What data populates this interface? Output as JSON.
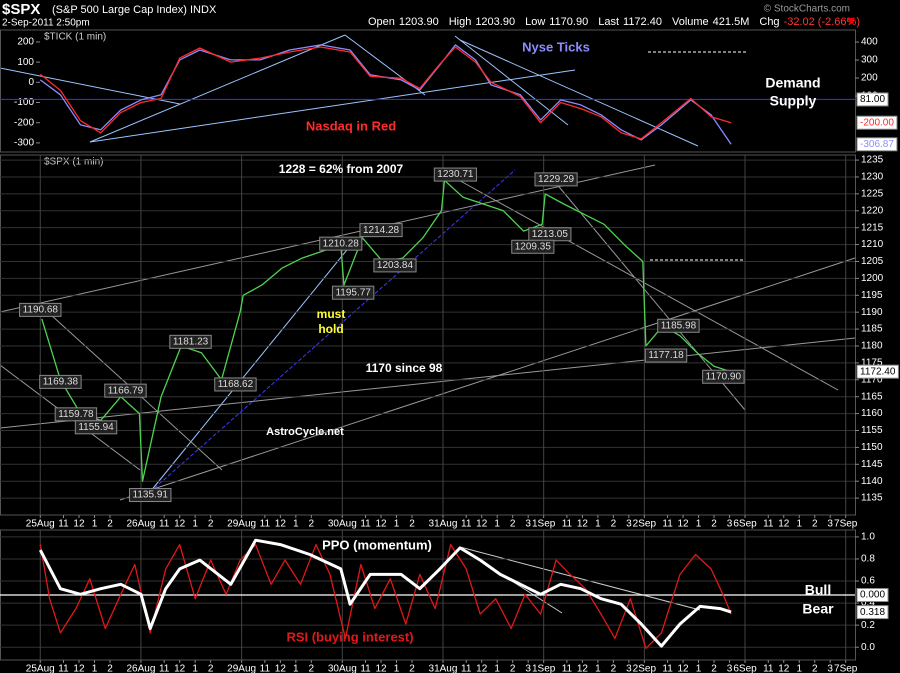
{
  "header": {
    "symbol": "$SPX",
    "name": "(S&P 500 Large Cap Index) INDX",
    "date": "2-Sep-2011 2:50pm",
    "quote": [
      {
        "label": "Open",
        "value": "1203.90"
      },
      {
        "label": "High",
        "value": "1203.90"
      },
      {
        "label": "Low",
        "value": "1170.90"
      },
      {
        "label": "Last",
        "value": "1172.40"
      },
      {
        "label": "Volume",
        "value": "421.5M"
      },
      {
        "label": "Chg",
        "value": "-32.02 (-2.66%)"
      }
    ],
    "copyright": "© StockCharts.com"
  },
  "chart_data": [
    {
      "type": "line",
      "title": "$TICK (1 min)",
      "y_axis_side": "left",
      "grid": false,
      "xlim": [
        -2.6,
        52.6
      ],
      "x": [
        0,
        1.3,
        2.6,
        3.9,
        5.2,
        6.5,
        7.8,
        9.0,
        10.3,
        12.3,
        14.2,
        16.1,
        18.1,
        20.0,
        21.3,
        23.3,
        24.5,
        25.8,
        26.8,
        28.1,
        29.1,
        31.0,
        32.3,
        33.6,
        34.9,
        36.2,
        37.5,
        38.8,
        40.1,
        42.0,
        43.3,
        44.6
      ],
      "series": [
        {
          "name": "Nyse Ticks",
          "color": "#8c8cff",
          "values": [
            12,
            -62,
            -211,
            -235,
            -137,
            -87,
            -62,
            111,
            160,
            111,
            111,
            160,
            185,
            160,
            37,
            12,
            -38,
            86,
            185,
            111,
            -13,
            -62,
            -186,
            -87,
            -112,
            -161,
            -235,
            -285,
            -211,
            -87,
            -161,
            -306.87
          ],
          "last_value": {
            "value": -306.87,
            "label": "-306.87"
          }
        },
        {
          "name": "Nasdaq in Red",
          "color": "#ff2a2a",
          "values": [
            40,
            -40,
            -190,
            -250,
            -150,
            -100,
            -80,
            120,
            170,
            100,
            120,
            150,
            175,
            150,
            30,
            20,
            -30,
            90,
            175,
            100,
            0,
            -70,
            -200,
            -100,
            -130,
            -170,
            -250,
            -280,
            -200,
            -80,
            -170,
            -200
          ],
          "last_value": {
            "value": -200,
            "label": "-200.00"
          }
        }
      ],
      "ylim": [
        -345,
        259
      ],
      "yticks": [
        -300,
        -200,
        -100,
        0,
        100,
        200
      ],
      "y2lim": [
        -211,
        467
      ],
      "y2ticks": [
        100,
        200,
        300,
        400
      ],
      "reference_line": {
        "value": 81,
        "label": "81.00",
        "axis": "y2",
        "color": "#2a2aff"
      },
      "notes": [
        "Demand",
        "Supply"
      ]
    },
    {
      "type": "line",
      "title": "$SPX (1 min)",
      "y_axis_side": "right",
      "grid": true,
      "color": "#4fd34f",
      "xlim": [
        -2.6,
        52.6
      ],
      "x": [
        0.1,
        1.3,
        2.6,
        3.9,
        5.2,
        6.4,
        6.6,
        7.8,
        9.1,
        10.4,
        11.7,
        12.9,
        13.1,
        14.3,
        15.6,
        16.9,
        18.2,
        19.4,
        19.6,
        20.8,
        22.1,
        23.4,
        24.7,
        25.9,
        26.1,
        27.3,
        28.6,
        29.9,
        31.2,
        32.4,
        32.6,
        33.8,
        35.1,
        36.4,
        37.7,
        38.9,
        39.1,
        40.2,
        41.3,
        42.4,
        43.5,
        44.6
      ],
      "values": [
        1188,
        1170,
        1160,
        1158,
        1165,
        1160,
        1140,
        1165,
        1180,
        1178,
        1170,
        1190,
        1195,
        1198,
        1203,
        1206,
        1208,
        1210,
        1198,
        1212,
        1205,
        1206,
        1212,
        1220,
        1229,
        1224,
        1222,
        1220,
        1214,
        1216,
        1225,
        1222,
        1219,
        1216,
        1210,
        1205,
        1180,
        1186,
        1183,
        1178,
        1174,
        1172.4
      ],
      "last_value": {
        "value": 1172.4,
        "label": "1172.40"
      },
      "ylim": [
        1130,
        1236.5
      ],
      "yticks": [
        1135,
        1140,
        1145,
        1150,
        1155,
        1160,
        1165,
        1170,
        1175,
        1180,
        1185,
        1190,
        1195,
        1200,
        1205,
        1210,
        1215,
        1220,
        1225,
        1230,
        1235
      ],
      "xticks": [
        {
          "value": 0,
          "label": "25Aug"
        },
        {
          "value": 1.5,
          "label": "11"
        },
        {
          "value": 2.5,
          "label": "12"
        },
        {
          "value": 3.5,
          "label": "1"
        },
        {
          "value": 4.5,
          "label": "2"
        },
        {
          "value": 6.5,
          "label": "26Aug"
        },
        {
          "value": 8,
          "label": "11"
        },
        {
          "value": 9,
          "label": "12"
        },
        {
          "value": 10,
          "label": "1"
        },
        {
          "value": 11,
          "label": "2"
        },
        {
          "value": 13,
          "label": "29Aug"
        },
        {
          "value": 14.5,
          "label": "11"
        },
        {
          "value": 15.5,
          "label": "12"
        },
        {
          "value": 16.5,
          "label": "1"
        },
        {
          "value": 17.5,
          "label": "2"
        },
        {
          "value": 19.5,
          "label": "30Aug"
        },
        {
          "value": 21,
          "label": "11"
        },
        {
          "value": 22,
          "label": "12"
        },
        {
          "value": 23,
          "label": "1"
        },
        {
          "value": 24,
          "label": "2"
        },
        {
          "value": 26,
          "label": "31Aug"
        },
        {
          "value": 27.5,
          "label": "11"
        },
        {
          "value": 28.5,
          "label": "12"
        },
        {
          "value": 29.5,
          "label": "1"
        },
        {
          "value": 30.5,
          "label": "2"
        },
        {
          "value": 31.5,
          "label": "3"
        },
        {
          "value": 32.5,
          "label": "1Sep"
        },
        {
          "value": 34,
          "label": "11"
        },
        {
          "value": 35,
          "label": "12"
        },
        {
          "value": 36,
          "label": "1"
        },
        {
          "value": 37,
          "label": "2"
        },
        {
          "value": 38,
          "label": "3"
        },
        {
          "value": 39,
          "label": "2Sep"
        },
        {
          "value": 40.5,
          "label": "11"
        },
        {
          "value": 41.5,
          "label": "12"
        },
        {
          "value": 42.5,
          "label": "1"
        },
        {
          "value": 43.5,
          "label": "2"
        },
        {
          "value": 44.5,
          "label": "3"
        },
        {
          "value": 45.5,
          "label": "6Sep"
        },
        {
          "value": 47,
          "label": "11"
        },
        {
          "value": 48,
          "label": "12"
        },
        {
          "value": 49,
          "label": "1"
        },
        {
          "value": 50,
          "label": "2"
        },
        {
          "value": 51,
          "label": "3"
        },
        {
          "value": 52,
          "label": "7Sep"
        }
      ],
      "annotations": [
        {
          "x": 0.0,
          "value": 1190.68,
          "label": "1190.68"
        },
        {
          "x": 1.3,
          "value": 1169.38,
          "label": "1169.38"
        },
        {
          "x": 2.3,
          "value": 1159.78,
          "label": "1159.78"
        },
        {
          "x": 3.6,
          "value": 1155.94,
          "label": "1155.94"
        },
        {
          "x": 5.5,
          "value": 1166.79,
          "label": "1166.79"
        },
        {
          "x": 7.1,
          "value": 1135.91,
          "label": "1135.91"
        },
        {
          "x": 9.7,
          "value": 1181.23,
          "label": "1181.23"
        },
        {
          "x": 12.6,
          "value": 1168.62,
          "label": "1168.62"
        },
        {
          "x": 19.4,
          "value": 1210.28,
          "label": "1210.28"
        },
        {
          "x": 20.2,
          "value": 1195.77,
          "label": "1195.77"
        },
        {
          "x": 22.0,
          "value": 1214.28,
          "label": "1214.28"
        },
        {
          "x": 22.9,
          "value": 1203.84,
          "label": "1203.84"
        },
        {
          "x": 26.8,
          "value": 1230.71,
          "label": "1230.71"
        },
        {
          "x": 32.9,
          "value": 1213.05,
          "label": "1213.05"
        },
        {
          "x": 31.8,
          "value": 1209.35,
          "label": "1209.35"
        },
        {
          "x": 33.3,
          "value": 1229.29,
          "label": "1229.29"
        },
        {
          "x": 41.2,
          "value": 1185.98,
          "label": "1185.98"
        },
        {
          "x": 40.4,
          "value": 1177.18,
          "label": "1177.18"
        },
        {
          "x": 44.1,
          "value": 1170.9,
          "label": "1170.90"
        }
      ],
      "notes": [
        "1228 = 62% from 2007",
        "must",
        "hold",
        "1170 since 98",
        "AstroCycle.net"
      ]
    },
    {
      "type": "line",
      "y_axis_side": "right",
      "grid": true,
      "xlim": [
        -2.6,
        52.6
      ],
      "series": [
        {
          "name": "RSI (buying interest)",
          "color": "#e01818",
          "x": [
            0,
            0.6,
            1.3,
            2.3,
            3.2,
            4.2,
            5.2,
            6.1,
            7.1,
            8.1,
            9.0,
            10.0,
            11.0,
            12.0,
            12.9,
            13.9,
            14.9,
            15.8,
            16.8,
            17.8,
            18.7,
            19.7,
            20.7,
            21.6,
            22.6,
            23.6,
            24.5,
            25.5,
            26.5,
            27.5,
            28.4,
            29.4,
            30.4,
            31.3,
            32.3,
            33.3,
            34.2,
            35.2,
            36.2,
            37.1,
            38.1,
            39.1,
            40.1,
            41.3,
            42.3,
            43.3,
            44.2,
            44.6
          ],
          "values": [
            0.93,
            0.44,
            0.13,
            0.35,
            0.62,
            0.17,
            0.48,
            0.75,
            0.13,
            0.71,
            0.93,
            0.44,
            0.79,
            0.48,
            0.79,
            0.93,
            0.57,
            0.79,
            0.57,
            0.93,
            0.66,
            0.08,
            0.75,
            0.35,
            0.62,
            0.21,
            0.66,
            0.35,
            0.93,
            0.71,
            0.3,
            0.44,
            0.17,
            0.48,
            0.3,
            0.79,
            0.66,
            0.53,
            0.3,
            0.08,
            0.44,
            -0.01,
            0.13,
            0.66,
            0.84,
            0.71,
            0.44,
            0.3
          ]
        },
        {
          "name": "PPO (momentum)",
          "color": "#ffffff",
          "x": [
            0,
            1.3,
            2.6,
            3.9,
            5.2,
            6.5,
            7.1,
            8.1,
            9.0,
            10.3,
            12.3,
            13.9,
            15.5,
            17.4,
            19.4,
            20.0,
            21.3,
            23.3,
            24.5,
            25.8,
            27.1,
            28.4,
            29.7,
            31.0,
            32.3,
            33.6,
            34.9,
            36.2,
            37.5,
            38.8,
            40.1,
            41.3,
            42.6,
            43.9,
            44.6
          ],
          "values": [
            0.88,
            0.53,
            0.48,
            0.53,
            0.57,
            0.48,
            0.17,
            0.53,
            0.71,
            0.79,
            0.57,
            0.97,
            0.93,
            0.84,
            0.71,
            0.39,
            0.66,
            0.66,
            0.53,
            0.71,
            0.9,
            0.79,
            0.66,
            0.57,
            0.48,
            0.57,
            0.53,
            0.44,
            0.39,
            0.21,
            0.01,
            0.21,
            0.37,
            0.35,
            0.318
          ],
          "last_value": {
            "value": 0.318,
            "label": "0.318"
          }
        }
      ],
      "ylim": [
        -0.116,
        1.0625
      ],
      "yticks": [
        {
          "value": 0,
          "label": "0.0"
        },
        0.2,
        0.4,
        0.6,
        0.8,
        {
          "value": 1,
          "label": "1.0"
        }
      ],
      "y2lim": [
        -1.1,
        1.1
      ],
      "reference_line": {
        "value": 0,
        "label": "0.000",
        "axis": "y2",
        "color": "#ffffff"
      },
      "xticks": [
        {
          "value": 0,
          "label": "25Aug"
        },
        {
          "value": 1.5,
          "label": "11"
        },
        {
          "value": 2.5,
          "label": "12"
        },
        {
          "value": 3.5,
          "label": "1"
        },
        {
          "value": 4.5,
          "label": "2"
        },
        {
          "value": 6.5,
          "label": "26Aug"
        },
        {
          "value": 8,
          "label": "11"
        },
        {
          "value": 9,
          "label": "12"
        },
        {
          "value": 10,
          "label": "1"
        },
        {
          "value": 11,
          "label": "2"
        },
        {
          "value": 13,
          "label": "29Aug"
        },
        {
          "value": 14.5,
          "label": "11"
        },
        {
          "value": 15.5,
          "label": "12"
        },
        {
          "value": 16.5,
          "label": "1"
        },
        {
          "value": 17.5,
          "label": "2"
        },
        {
          "value": 19.5,
          "label": "30Aug"
        },
        {
          "value": 21,
          "label": "11"
        },
        {
          "value": 22,
          "label": "12"
        },
        {
          "value": 23,
          "label": "1"
        },
        {
          "value": 24,
          "label": "2"
        },
        {
          "value": 26,
          "label": "31Aug"
        },
        {
          "value": 27.5,
          "label": "11"
        },
        {
          "value": 28.5,
          "label": "12"
        },
        {
          "value": 29.5,
          "label": "1"
        },
        {
          "value": 30.5,
          "label": "2"
        },
        {
          "value": 31.5,
          "label": "3"
        },
        {
          "value": 32.5,
          "label": "1Sep"
        },
        {
          "value": 34,
          "label": "11"
        },
        {
          "value": 35,
          "label": "12"
        },
        {
          "value": 36,
          "label": "1"
        },
        {
          "value": 37,
          "label": "2"
        },
        {
          "value": 38,
          "label": "3"
        },
        {
          "value": 39,
          "label": "2Sep"
        },
        {
          "value": 40.5,
          "label": "11"
        },
        {
          "value": 41.5,
          "label": "12"
        },
        {
          "value": 42.5,
          "label": "1"
        },
        {
          "value": 43.5,
          "label": "2"
        },
        {
          "value": 44.5,
          "label": "3"
        },
        {
          "value": 45.5,
          "label": "6Sep"
        },
        {
          "value": 47,
          "label": "11"
        },
        {
          "value": 48,
          "label": "12"
        },
        {
          "value": 49,
          "label": "1"
        },
        {
          "value": 50,
          "label": "2"
        },
        {
          "value": 51,
          "label": "3"
        },
        {
          "value": 52,
          "label": "7Sep"
        }
      ],
      "notes": [
        "Bull",
        "Bear"
      ]
    }
  ]
}
